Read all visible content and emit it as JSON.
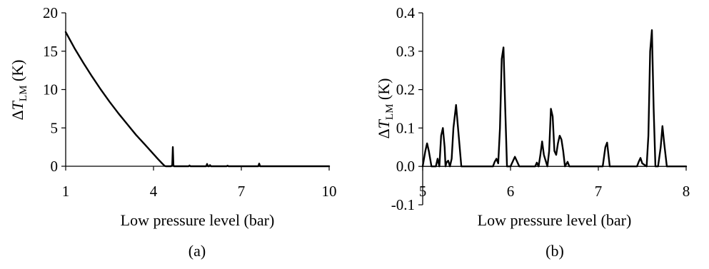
{
  "chart_data": [
    {
      "type": "line",
      "panel_label": "(a)",
      "xlabel": "Low pressure level (bar)",
      "ylabel_prefix": "Δ",
      "ylabel_var": "T",
      "ylabel_sub": "LM",
      "ylabel_unit": " (K)",
      "xlim": [
        1,
        10
      ],
      "ylim": [
        0,
        20
      ],
      "xticks": [
        1,
        4,
        7,
        10
      ],
      "yticks": [
        0,
        5,
        10,
        15,
        20
      ],
      "grid": false,
      "series": [
        {
          "color": "#000000",
          "x": [
            1.0,
            1.3,
            1.6,
            1.9,
            2.2,
            2.5,
            2.8,
            3.1,
            3.4,
            3.7,
            3.95,
            4.15,
            4.3,
            4.38,
            4.42,
            4.5,
            4.6,
            4.64,
            4.66,
            4.68,
            4.7,
            4.75,
            5.2,
            5.23,
            5.26,
            5.3,
            5.4,
            5.8,
            5.83,
            5.86,
            5.9,
            5.93,
            5.96,
            6.5,
            6.53,
            6.56,
            6.7,
            7.5,
            7.58,
            7.61,
            7.64,
            8.0,
            10.0
          ],
          "y": [
            17.5,
            15.4,
            13.5,
            11.7,
            10.0,
            8.4,
            6.9,
            5.5,
            4.1,
            2.85,
            1.8,
            0.95,
            0.35,
            0.05,
            0.0,
            0.0,
            0.0,
            0.15,
            2.5,
            0.15,
            0.0,
            0.0,
            0.0,
            0.1,
            0.0,
            0.0,
            0.0,
            0.0,
            0.3,
            0.0,
            0.0,
            0.15,
            0.0,
            0.0,
            0.08,
            0.0,
            0.0,
            0.0,
            0.0,
            0.35,
            0.0,
            0.0,
            0.0
          ]
        }
      ]
    },
    {
      "type": "line",
      "panel_label": "(b)",
      "xlabel": "Low pressure level (bar)",
      "ylabel_prefix": "Δ",
      "ylabel_var": "T",
      "ylabel_sub": "LM",
      "ylabel_unit": " (K)",
      "xlim": [
        5,
        8
      ],
      "ylim": [
        -0.1,
        0.4
      ],
      "xticks": [
        5,
        6,
        7,
        8
      ],
      "yticks": [
        -0.1,
        0.0,
        0.1,
        0.2,
        0.3,
        0.4
      ],
      "ytick_decimals": 1,
      "grid": false,
      "series": [
        {
          "color": "#000000",
          "x": [
            5.0,
            5.03,
            5.05,
            5.07,
            5.1,
            5.15,
            5.17,
            5.19,
            5.2,
            5.21,
            5.23,
            5.25,
            5.26,
            5.27,
            5.29,
            5.31,
            5.33,
            5.35,
            5.38,
            5.41,
            5.44,
            5.5,
            5.8,
            5.82,
            5.84,
            5.86,
            5.88,
            5.9,
            5.92,
            5.94,
            5.96,
            6.0,
            6.03,
            6.05,
            6.07,
            6.1,
            6.28,
            6.3,
            6.32,
            6.34,
            6.36,
            6.38,
            6.42,
            6.44,
            6.46,
            6.48,
            6.5,
            6.52,
            6.54,
            6.56,
            6.58,
            6.6,
            6.62,
            6.65,
            6.67,
            6.7,
            6.75,
            7.05,
            7.08,
            7.1,
            7.13,
            7.2,
            7.44,
            7.46,
            7.48,
            7.5,
            7.55,
            7.57,
            7.59,
            7.61,
            7.63,
            7.65,
            7.68,
            7.71,
            7.73,
            7.75,
            7.78,
            8.0
          ],
          "y": [
            0.0,
            0.04,
            0.06,
            0.04,
            0.0,
            0.0,
            0.02,
            0.0,
            0.04,
            0.08,
            0.1,
            0.05,
            0.0,
            0.01,
            0.015,
            0.0,
            0.02,
            0.1,
            0.16,
            0.08,
            0.0,
            0.0,
            0.0,
            0.012,
            0.02,
            0.008,
            0.1,
            0.28,
            0.31,
            0.15,
            0.0,
            0.0,
            0.015,
            0.025,
            0.015,
            0.0,
            0.0,
            0.01,
            0.0,
            0.03,
            0.065,
            0.03,
            0.0,
            0.04,
            0.15,
            0.13,
            0.04,
            0.03,
            0.06,
            0.08,
            0.07,
            0.04,
            0.0,
            0.012,
            0.0,
            0.0,
            0.0,
            0.0,
            0.05,
            0.062,
            0.0,
            0.0,
            0.0,
            0.012,
            0.022,
            0.008,
            0.0,
            0.08,
            0.3,
            0.355,
            0.15,
            0.0,
            0.0,
            0.05,
            0.105,
            0.06,
            0.0,
            0.0
          ]
        }
      ]
    }
  ]
}
